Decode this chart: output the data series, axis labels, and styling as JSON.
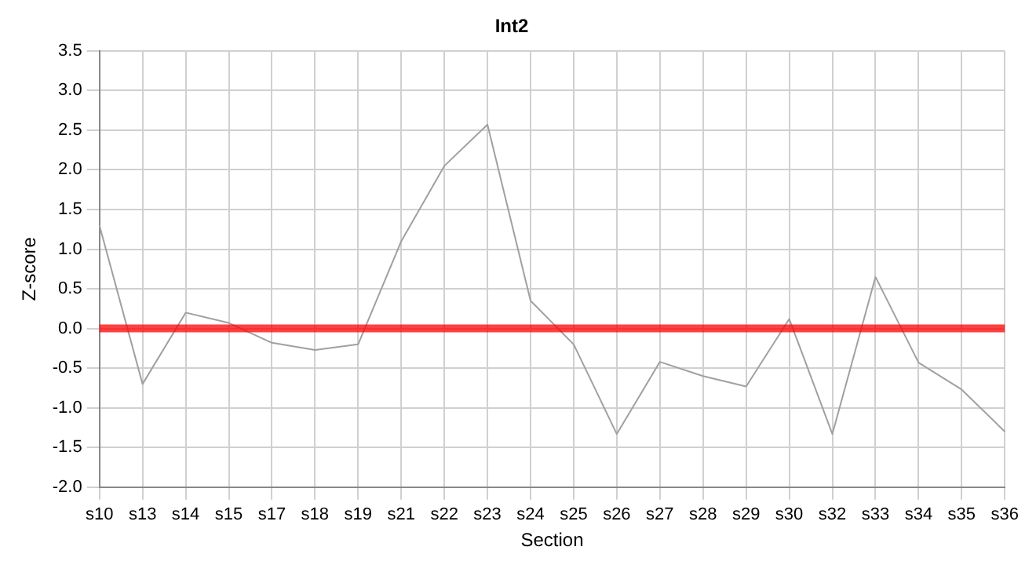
{
  "chart_data": {
    "type": "line",
    "title": "Int2",
    "xlabel": "Section",
    "ylabel": "Z-score",
    "categories": [
      "s10",
      "s13",
      "s14",
      "s15",
      "s17",
      "s18",
      "s19",
      "s21",
      "s22",
      "s23",
      "s24",
      "s25",
      "s26",
      "s27",
      "s28",
      "s29",
      "s30",
      "s32",
      "s33",
      "s34",
      "s35",
      "s36"
    ],
    "series": [
      {
        "color": "#a0a0a0",
        "values": [
          1.3,
          -0.7,
          0.2,
          0.07,
          -0.18,
          -0.27,
          -0.2,
          1.1,
          2.05,
          2.57,
          0.35,
          -0.2,
          -1.33,
          -0.42,
          -0.6,
          -0.73,
          0.12,
          -1.33,
          0.65,
          -0.43,
          -0.77,
          -1.3
        ]
      }
    ],
    "ylim": [
      -2.0,
      3.5
    ],
    "yticks": [
      {
        "value": -2,
        "label": "-2.0"
      },
      {
        "value": -1.5,
        "label": "-1.5"
      },
      {
        "value": -1,
        "label": "-1.0"
      },
      {
        "value": -0.5,
        "label": "-0.5"
      },
      {
        "value": 0,
        "label": "0.0"
      },
      {
        "value": 0.5,
        "label": "0.5"
      },
      {
        "value": 1,
        "label": "1.0"
      },
      {
        "value": 1.5,
        "label": "1.5"
      },
      {
        "value": 2,
        "label": "2.0"
      },
      {
        "value": 2.5,
        "label": "2.5"
      },
      {
        "value": 3,
        "label": "3.0"
      },
      {
        "value": 3.5,
        "label": "3.5"
      }
    ],
    "ref_lines": [
      {
        "axis": "y",
        "value": 0,
        "color": "#ff0000"
      }
    ],
    "grid": true,
    "legend": false,
    "marker": "none",
    "line_style": "solid"
  }
}
